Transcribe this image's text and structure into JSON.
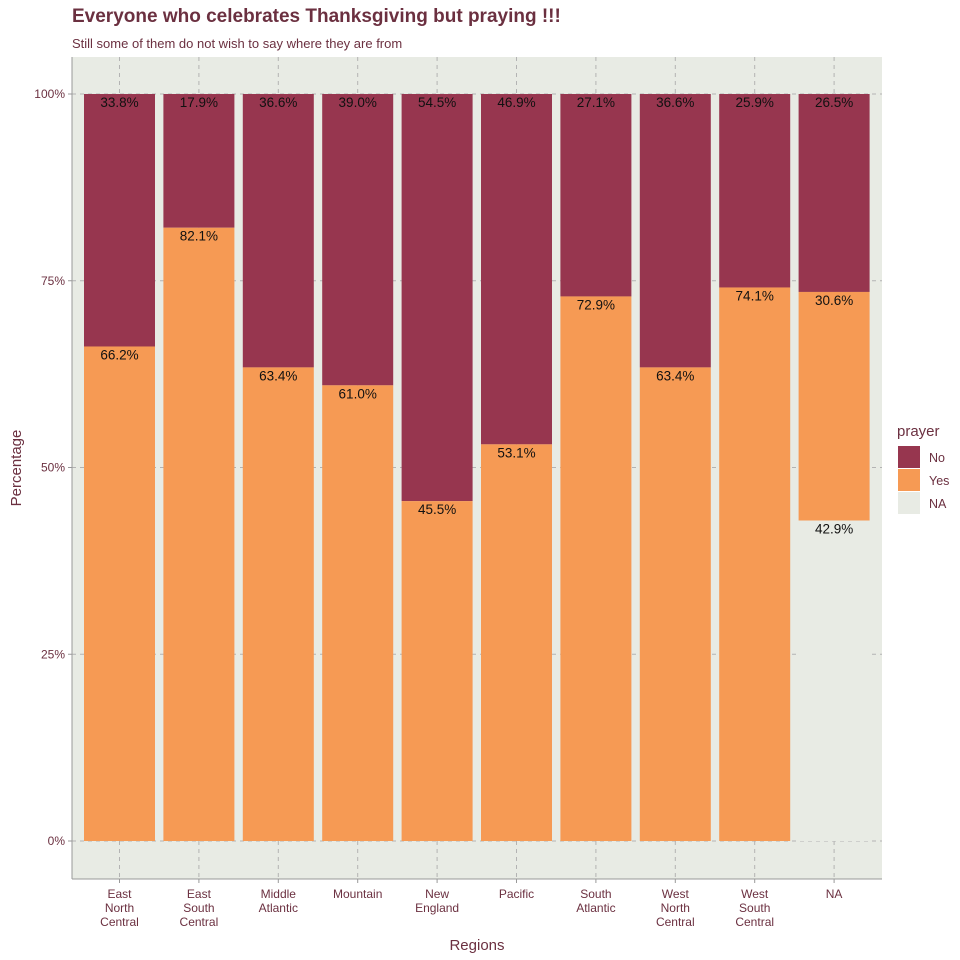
{
  "title": "Everyone who celebrates Thanksgiving but praying !!!",
  "subtitle": "Still some of them do not wish to say where they are from",
  "colors": {
    "no": "#97364f",
    "yes": "#f69a54",
    "na": "#e8ebe4",
    "panel": "#e8ebe4",
    "grid": "#b3b3b3",
    "text": "#6b3040"
  },
  "chart_data": {
    "type": "bar",
    "stacked": true,
    "xlabel": "Regions",
    "ylabel": "Percentage",
    "ylim": [
      0,
      1
    ],
    "yticks": [
      "0%",
      "25%",
      "50%",
      "75%",
      "100%"
    ],
    "categories": [
      [
        "East",
        "North",
        "Central"
      ],
      [
        "East",
        "South",
        "Central"
      ],
      [
        "Middle",
        "Atlantic"
      ],
      [
        "Mountain"
      ],
      [
        "New",
        "England"
      ],
      [
        "Pacific"
      ],
      [
        "South",
        "Atlantic"
      ],
      [
        "West",
        "North",
        "Central"
      ],
      [
        "West",
        "South",
        "Central"
      ],
      [
        "NA"
      ]
    ],
    "series": [
      {
        "name": "No",
        "values": [
          0.338,
          0.179,
          0.366,
          0.39,
          0.545,
          0.469,
          0.271,
          0.366,
          0.259,
          0.265
        ],
        "labels": [
          "33.8%",
          "17.9%",
          "36.6%",
          "39.0%",
          "54.5%",
          "46.9%",
          "27.1%",
          "36.6%",
          "25.9%",
          "26.5%"
        ]
      },
      {
        "name": "Yes",
        "values": [
          0.662,
          0.821,
          0.634,
          0.61,
          0.455,
          0.531,
          0.729,
          0.634,
          0.741,
          0.306
        ],
        "labels": [
          "66.2%",
          "82.1%",
          "63.4%",
          "61.0%",
          "45.5%",
          "53.1%",
          "72.9%",
          "63.4%",
          "74.1%",
          "30.6%"
        ]
      },
      {
        "name": "NA",
        "values": [
          0,
          0,
          0,
          0,
          0,
          0,
          0,
          0,
          0,
          0.429
        ],
        "labels": [
          "",
          "",
          "",
          "",
          "",
          "",
          "",
          "",
          "",
          "42.9%"
        ]
      }
    ],
    "legend": {
      "title": "prayer",
      "position": "right",
      "items": [
        "No",
        "Yes",
        "NA"
      ]
    }
  }
}
